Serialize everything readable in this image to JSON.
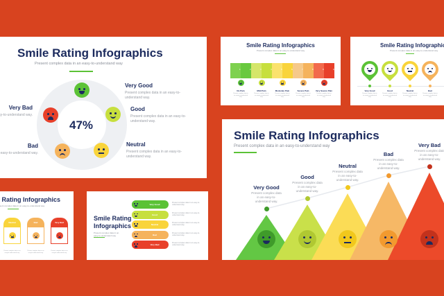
{
  "colors": {
    "background": "#d8431f",
    "very_good": "#5bc236",
    "good": "#c7df3e",
    "neutral": "#f9d43b",
    "bad": "#f5b35c",
    "very_bad": "#e8402a",
    "title": "#1c2b5e"
  },
  "title": "Smile Rating Infographics",
  "subtitle": "Present complex data in an easy-to-understand way",
  "desc": "Present complex data in an easy-to-understand way.",
  "slide_donut": {
    "center_value": "47%",
    "items": [
      {
        "label": "Very Good",
        "mood": "vhappy"
      },
      {
        "label": "Good",
        "mood": "happy"
      },
      {
        "label": "Neutral",
        "mood": "neutral"
      },
      {
        "label": "Bad",
        "mood": "sad"
      },
      {
        "label": "Very Bad",
        "mood": "vsad"
      }
    ]
  },
  "slide_pain": {
    "scale": [
      "0",
      "1",
      "2",
      "3",
      "4",
      "5",
      "6",
      "7",
      "8",
      "9",
      "10"
    ],
    "items": [
      {
        "label": "No Pain",
        "mood": "vhappy"
      },
      {
        "label": "Mild Pain",
        "mood": "happy"
      },
      {
        "label": "Moderate Pain",
        "mood": "neutral"
      },
      {
        "label": "Severe Pain",
        "mood": "sad"
      },
      {
        "label": "Very Severe Pain",
        "mood": "vsad"
      }
    ]
  },
  "slide_pins": {
    "items": [
      {
        "label": "Very Good",
        "mood": "vhappy"
      },
      {
        "label": "Good",
        "mood": "happy"
      },
      {
        "label": "Neutral",
        "mood": "neutral"
      },
      {
        "label": "Bad",
        "mood": "sad"
      }
    ]
  },
  "slide_triangles": {
    "items": [
      {
        "label": "Very Good",
        "mood": "vhappy"
      },
      {
        "label": "Good",
        "mood": "happy"
      },
      {
        "label": "Neutral",
        "mood": "neutral"
      },
      {
        "label": "Bad",
        "mood": "sad"
      },
      {
        "label": "Very Bad",
        "mood": "vsad"
      }
    ]
  },
  "slide_cards": {
    "items": [
      {
        "label": "Neutral",
        "mood": "neutral"
      },
      {
        "label": "Bad",
        "mood": "sad"
      },
      {
        "label": "Very Bad",
        "mood": "vsad"
      }
    ]
  },
  "slide_pills": {
    "title_line1": "Smile Rating",
    "title_line2": "Infographics",
    "items": [
      {
        "label": "Very Good",
        "mood": "vhappy"
      },
      {
        "label": "Good",
        "mood": "happy"
      },
      {
        "label": "Neutral",
        "mood": "neutral"
      },
      {
        "label": "Bad",
        "mood": "sad"
      },
      {
        "label": "Very Bad",
        "mood": "vsad"
      }
    ]
  }
}
